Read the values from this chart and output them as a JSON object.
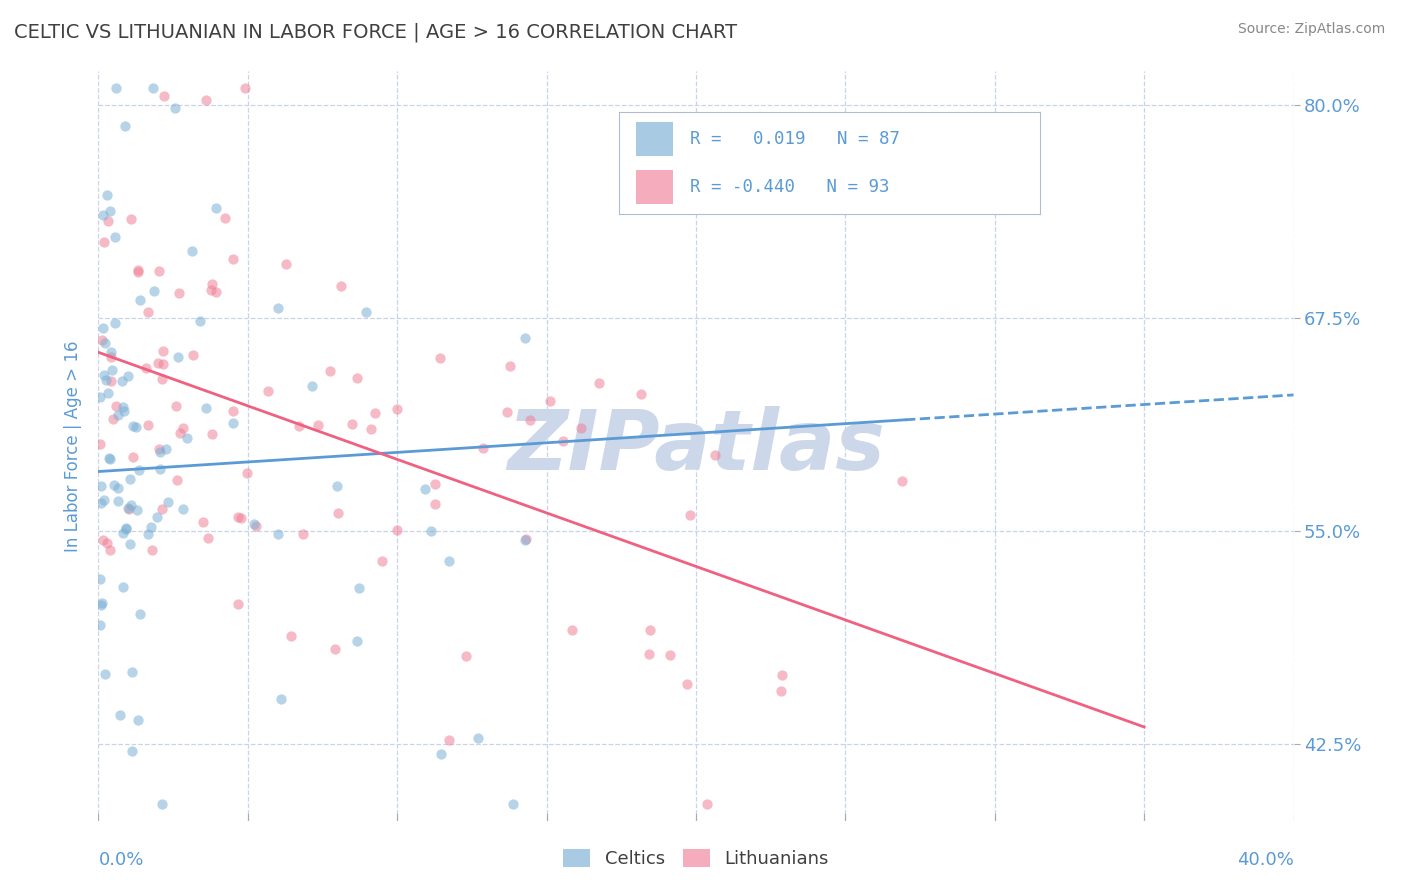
{
  "title": "CELTIC VS LITHUANIAN IN LABOR FORCE | AGE > 16 CORRELATION CHART",
  "source_text": "Source: ZipAtlas.com",
  "ylabel": "In Labor Force | Age > 16",
  "yticks_right": [
    80.0,
    67.5,
    55.0,
    42.5
  ],
  "xlim": [
    0.0,
    40.0
  ],
  "ylim": [
    38.0,
    82.0
  ],
  "celtics_color": "#7aafd4",
  "lithuanians_color": "#f08098",
  "celtics_line_color": "#5b9bd5",
  "lithuanians_line_color": "#f06080",
  "celtics_R": 0.019,
  "celtics_N": 87,
  "lithuanians_R": -0.44,
  "lithuanians_N": 93,
  "background_color": "#ffffff",
  "grid_color": "#c8d4e8",
  "title_color": "#404040",
  "axis_label_color": "#5b9bd5",
  "watermark": "ZIPatlas",
  "watermark_color": "#ccd8ea",
  "scatter_size": 55,
  "scatter_alpha": 0.55,
  "legend_text_color": "#5b9bd5",
  "celtics_line_y0": 58.5,
  "celtics_line_y1": 63.0,
  "lithuanians_line_y0": 65.5,
  "lithuanians_line_y1": 43.5,
  "lith_line_x0": 0.0,
  "lith_line_x1": 35.0
}
